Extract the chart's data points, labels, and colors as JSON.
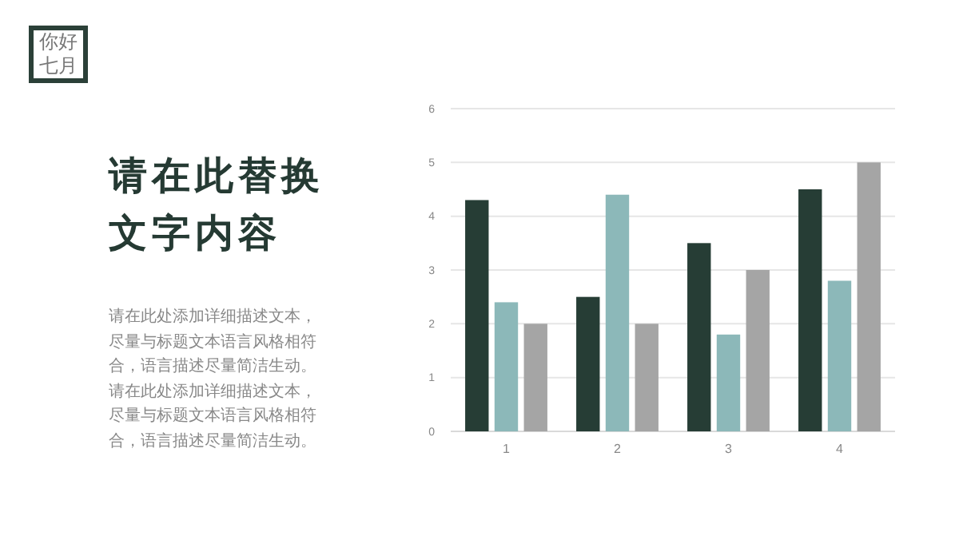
{
  "chart_data": {
    "type": "bar",
    "title": "请在此替换文字内容",
    "annotations": [
      "你好七月",
      "请在此处添加详细描述文本，尽量与标题文本语言风格相符合，语言描述尽量简洁生动。请在此处添加详细描述文本，尽量与标题文本语言风格相符合，语言描述尽量简洁生动。"
    ],
    "categories": [
      "1",
      "2",
      "3",
      "4"
    ],
    "series": [
      {
        "color": "#263d35",
        "values": [
          4.3,
          2.5,
          3.5,
          4.5
        ]
      },
      {
        "color": "#8cb8b9",
        "values": [
          2.4,
          4.4,
          1.8,
          2.8
        ]
      },
      {
        "color": "#a5a5a5",
        "values": [
          2,
          2,
          3,
          5
        ]
      }
    ],
    "ylim": [
      0,
      6
    ],
    "yticks": [
      0,
      1,
      2,
      3,
      4,
      5,
      6
    ],
    "grid": "y"
  }
}
